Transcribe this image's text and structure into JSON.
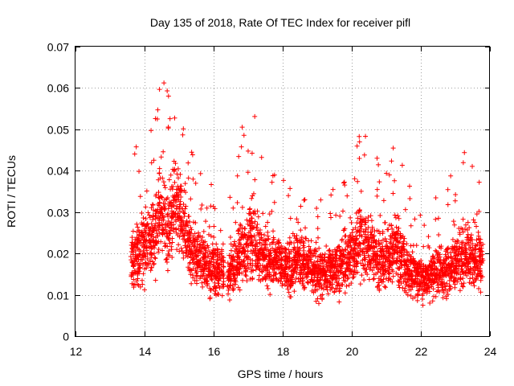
{
  "chart_data": {
    "type": "scatter",
    "title": "Day 135 of 2018, Rate Of TEC Index for receiver pifl",
    "xlabel": "GPS time / hours",
    "ylabel": "ROTI / TECUs",
    "xlim": [
      12,
      24
    ],
    "ylim": [
      0,
      0.07
    ],
    "xticks": [
      12,
      14,
      16,
      18,
      20,
      22,
      24
    ],
    "yticks": [
      0,
      0.01,
      0.02,
      0.03,
      0.04,
      0.05,
      0.06,
      0.07
    ],
    "ytick_labels": [
      "0",
      "0.01",
      "0.02",
      "0.03",
      "0.04",
      "0.05",
      "0.06",
      "0.07"
    ],
    "grid": true,
    "marker": "+",
    "series_color": "#ff0000",
    "series": [
      {
        "name": "ROTI",
        "segments": [
          {
            "x": [
              13.65,
              13.75,
              13.85,
              13.95,
              14.05,
              14.15,
              14.25,
              14.35,
              14.45,
              14.55,
              14.65,
              14.75,
              14.85,
              14.95,
              15.05,
              15.15,
              15.25,
              15.35,
              15.45,
              15.55,
              15.65,
              15.75,
              15.85,
              15.95,
              16.05,
              16.15,
              16.25
            ],
            "y": [
              0.018,
              0.02,
              0.019,
              0.021,
              0.022,
              0.023,
              0.025,
              0.027,
              0.03,
              0.028,
              0.026,
              0.029,
              0.031,
              0.03,
              0.028,
              0.026,
              0.023,
              0.021,
              0.02,
              0.019,
              0.018,
              0.018,
              0.017,
              0.017,
              0.016,
              0.016,
              0.016
            ]
          },
          {
            "x": [
              16.45,
              16.55,
              16.65,
              16.75,
              16.85,
              16.95,
              17.05,
              17.15,
              17.25,
              17.35,
              17.45,
              17.55,
              17.65,
              17.75,
              17.85,
              17.95,
              18.05,
              18.15,
              18.25,
              18.35,
              18.45,
              18.55,
              18.65,
              18.75,
              18.85,
              18.95,
              19.05,
              19.15,
              19.25,
              19.35,
              19.45,
              19.55,
              19.65,
              19.75,
              19.85,
              19.95,
              20.05,
              20.15,
              20.25,
              20.35,
              20.45,
              20.55,
              20.65,
              20.75,
              20.85,
              20.95,
              21.05,
              21.15,
              21.25,
              21.35,
              21.45,
              21.55,
              21.65,
              21.75,
              21.85,
              21.95,
              22.05,
              22.15,
              22.25,
              22.35,
              22.45,
              22.55,
              22.65,
              22.75,
              22.85,
              22.95,
              23.05,
              23.15,
              23.25,
              23.35,
              23.45,
              23.55,
              23.65,
              23.75
            ],
            "y": [
              0.015,
              0.016,
              0.017,
              0.02,
              0.022,
              0.021,
              0.023,
              0.024,
              0.022,
              0.02,
              0.019,
              0.018,
              0.018,
              0.019,
              0.018,
              0.017,
              0.017,
              0.016,
              0.016,
              0.017,
              0.018,
              0.018,
              0.017,
              0.017,
              0.016,
              0.016,
              0.015,
              0.015,
              0.015,
              0.016,
              0.016,
              0.017,
              0.017,
              0.018,
              0.018,
              0.019,
              0.02,
              0.022,
              0.024,
              0.023,
              0.022,
              0.021,
              0.02,
              0.019,
              0.018,
              0.018,
              0.019,
              0.02,
              0.021,
              0.02,
              0.018,
              0.017,
              0.016,
              0.015,
              0.015,
              0.014,
              0.014,
              0.014,
              0.015,
              0.015,
              0.016,
              0.016,
              0.015,
              0.016,
              0.017,
              0.018,
              0.018,
              0.019,
              0.02,
              0.02,
              0.019,
              0.018,
              0.018,
              0.019
            ]
          }
        ]
      }
    ]
  }
}
